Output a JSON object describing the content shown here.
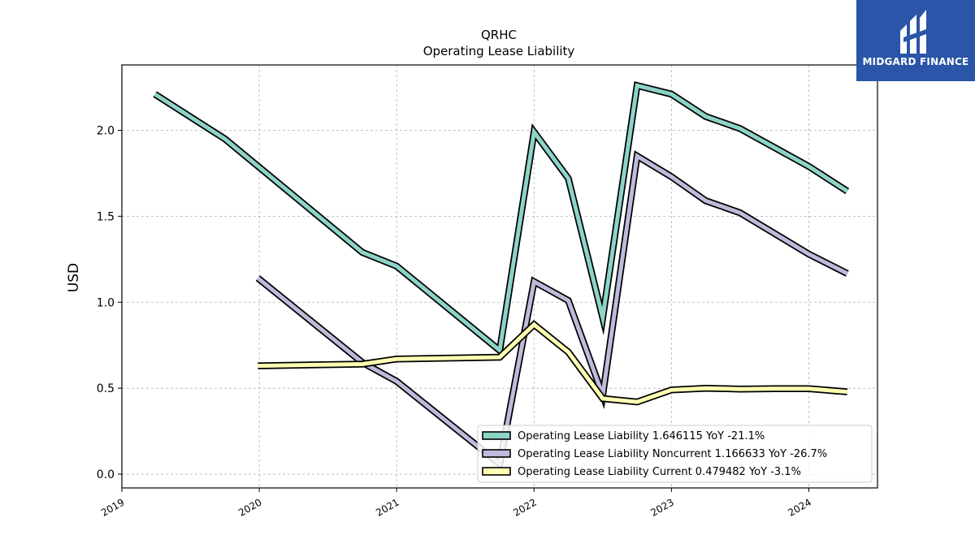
{
  "logo": {
    "text": "MIDGARD FINANCE",
    "icon": "midgard-logo-icon",
    "background": "#2a55a8"
  },
  "chart_data": {
    "type": "line",
    "title": "QRHC",
    "subtitle": "Operating Lease Liability",
    "xlabel": "",
    "ylabel": "USD",
    "xlim": [
      2019.0,
      2024.5
    ],
    "ylim": [
      -0.08,
      2.38
    ],
    "x_ticks": [
      2019,
      2020,
      2021,
      2022,
      2023,
      2024
    ],
    "x_tick_labels": [
      "2019",
      "2020",
      "2021",
      "2022",
      "2023",
      "2024"
    ],
    "y_ticks": [
      0.0,
      0.5,
      1.0,
      1.5,
      2.0
    ],
    "y_tick_labels": [
      "0.0",
      "0.5",
      "1.0",
      "1.5",
      "2.0"
    ],
    "grid": true,
    "legend_position": "lower-right",
    "series": [
      {
        "name": "Operating Lease Liability",
        "legend_label": "Operating Lease Liability  1.646115 YoY -21.1%",
        "color": "#8dd3c7",
        "x": [
          2019.24,
          2019.75,
          2020.75,
          2021.0,
          2021.75,
          2022.0,
          2022.25,
          2022.5,
          2022.75,
          2023.0,
          2023.25,
          2023.5,
          2024.0,
          2024.28
        ],
        "y": [
          2.21,
          1.95,
          1.29,
          1.21,
          0.72,
          1.99,
          1.72,
          0.91,
          2.26,
          2.21,
          2.08,
          2.01,
          1.79,
          1.646
        ]
      },
      {
        "name": "Operating Lease Liability Noncurrent",
        "legend_label": "Operating Lease Liability Noncurrent  1.166633 YoY -26.7%",
        "color": "#bebada",
        "x": [
          2019.99,
          2020.75,
          2021.0,
          2021.75,
          2022.0,
          2022.25,
          2022.5,
          2022.75,
          2023.0,
          2023.25,
          2023.5,
          2024.0,
          2024.28
        ],
        "y": [
          1.14,
          0.65,
          0.54,
          0.06,
          1.12,
          1.01,
          0.46,
          1.85,
          1.73,
          1.59,
          1.52,
          1.28,
          1.167
        ]
      },
      {
        "name": "Operating Lease Liability Current",
        "legend_label": "Operating Lease Liability Current  0.479482 YoY -3.1%",
        "color": "#ffffb3",
        "x": [
          2019.99,
          2020.75,
          2021.0,
          2021.75,
          2022.0,
          2022.25,
          2022.5,
          2022.75,
          2023.0,
          2023.25,
          2023.5,
          2023.75,
          2024.0,
          2024.28
        ],
        "y": [
          0.63,
          0.64,
          0.67,
          0.68,
          0.87,
          0.71,
          0.44,
          0.42,
          0.49,
          0.5,
          0.495,
          0.497,
          0.497,
          0.479
        ]
      }
    ]
  }
}
